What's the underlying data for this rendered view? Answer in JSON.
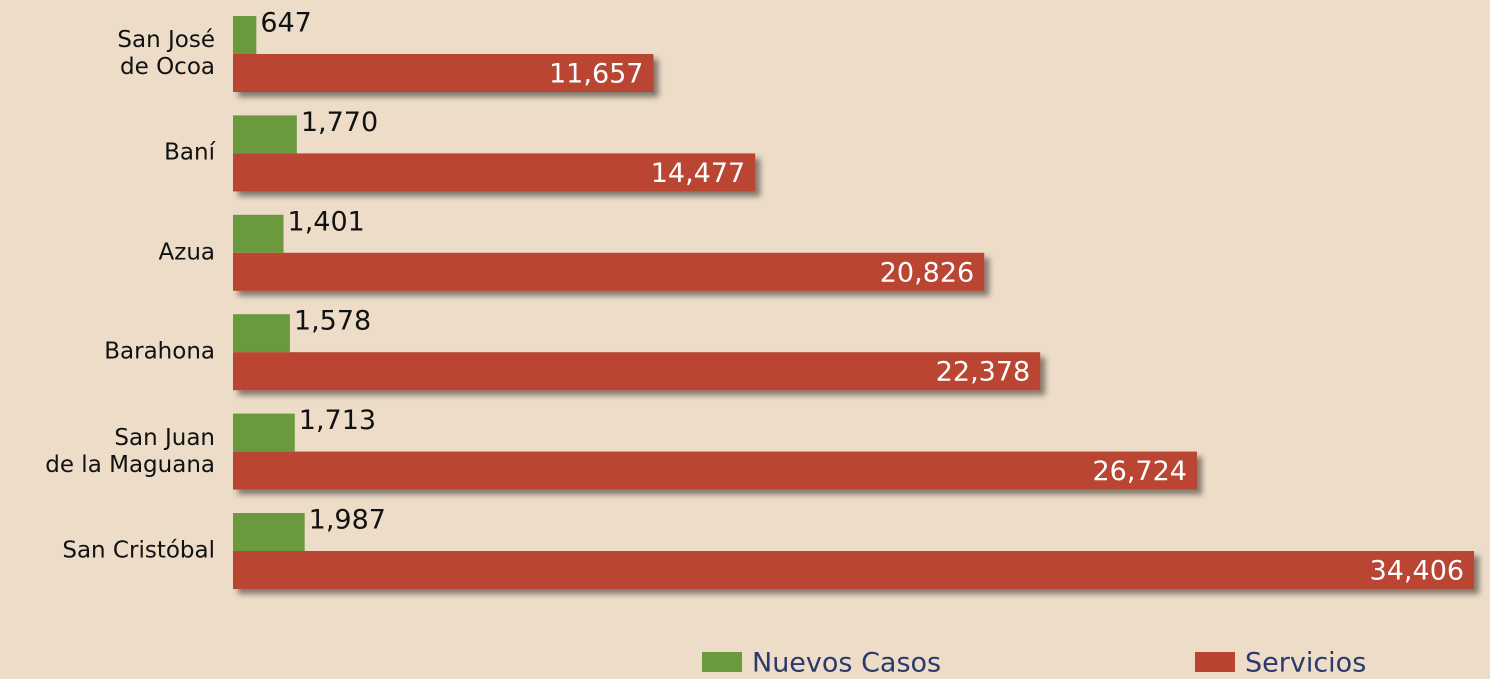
{
  "chart_data": {
    "type": "barh",
    "categories": [
      "San José\nde Ocoa",
      "Baní",
      "Azua",
      "Barahona",
      "San Juan\nde la Maguana",
      "San Cristóbal"
    ],
    "series": [
      {
        "name": "Nuevos Casos",
        "color": "#6b9a3e",
        "values": [
          647,
          1770,
          1401,
          1578,
          1713,
          1987
        ],
        "value_labels": [
          "647",
          "1,770",
          "1,401",
          "1,578",
          "1,713",
          "1,987"
        ]
      },
      {
        "name": "Servicios",
        "color": "#b94531",
        "values": [
          11657,
          14477,
          20826,
          22378,
          26724,
          34406
        ],
        "value_labels": [
          "11,657",
          "14,477",
          "20,826",
          "22,378",
          "26,724",
          "34,406"
        ]
      }
    ],
    "xlim": [
      0,
      35000
    ]
  }
}
